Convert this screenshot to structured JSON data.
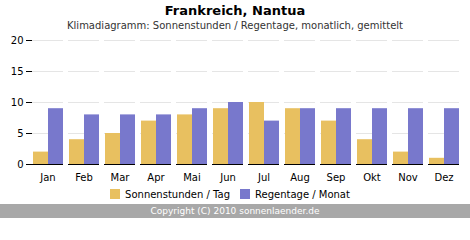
{
  "chart_data": {
    "type": "bar",
    "title": "Frankreich, Nantua",
    "subtitle": "Klimadiagramm: Sonnenstunden / Regentage, monatlich, gemittelt",
    "categories": [
      "Jan",
      "Feb",
      "Mar",
      "Apr",
      "Mai",
      "Jun",
      "Jul",
      "Aug",
      "Sep",
      "Okt",
      "Nov",
      "Dez"
    ],
    "series": [
      {
        "name": "Sonnenstunden / Tag",
        "color": "#e8c060",
        "values": [
          2,
          4,
          5,
          7,
          8,
          9,
          10,
          9,
          7,
          4,
          2,
          1
        ]
      },
      {
        "name": "Regentage / Monat",
        "color": "#7878cc",
        "values": [
          9,
          8,
          8,
          8,
          9,
          10,
          7,
          9,
          9,
          9,
          9,
          9
        ]
      }
    ],
    "ylim": [
      0,
      20
    ],
    "yticks": [
      0,
      5,
      10,
      15,
      20
    ],
    "grid": true,
    "legend": "bottom",
    "annotations": [
      "Copyright (C) 2010 sonnenlaender.de"
    ]
  }
}
